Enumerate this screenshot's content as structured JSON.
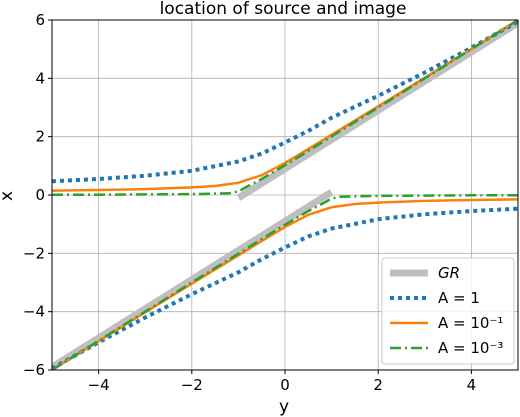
{
  "chart_data": {
    "type": "line",
    "title": "location of source and image",
    "xlabel": "y",
    "ylabel": "x",
    "xlim": [
      -5,
      5
    ],
    "ylim": [
      -6,
      6
    ],
    "xticks": [
      -4,
      -2,
      0,
      2,
      4
    ],
    "yticks": [
      -6,
      -4,
      -2,
      0,
      2,
      4,
      6
    ],
    "xtick_labels": [
      "−4",
      "−2",
      "0",
      "2",
      "4"
    ],
    "ytick_labels": [
      "−6",
      "−4",
      "−2",
      "0",
      "2",
      "4",
      "6"
    ],
    "grid": true,
    "legend_position": "lower-right",
    "series": [
      {
        "name": "GR",
        "label_latex": "GR",
        "color": "#bfbfbf",
        "style": "solid-thick",
        "segments": [
          {
            "x": [
              -1,
              5
            ],
            "y": [
              -0.1,
              5.9
            ]
          },
          {
            "x": [
              -5,
              1
            ],
            "y": [
              -5.9,
              0.1
            ]
          }
        ]
      },
      {
        "name": "A = 1",
        "label_latex": "A = 1",
        "color": "#1f77b4",
        "style": "dotted",
        "branches": [
          {
            "x": [
              -5,
              -4,
              -3,
              -2,
              -1,
              -0.5,
              0,
              0.5,
              1,
              2,
              3,
              4,
              5
            ],
            "y": [
              0.47,
              0.55,
              0.66,
              0.83,
              1.15,
              1.42,
              1.8,
              2.2,
              2.65,
              3.4,
              4.2,
              5.05,
              5.95
            ]
          },
          {
            "x": [
              -5,
              -4,
              -3,
              -2,
              -1,
              -0.5,
              0,
              0.5,
              1,
              2,
              3,
              4,
              5
            ],
            "y": [
              -5.95,
              -5.05,
              -4.2,
              -3.4,
              -2.65,
              -2.2,
              -1.8,
              -1.42,
              -1.15,
              -0.83,
              -0.66,
              -0.55,
              -0.47
            ]
          }
        ]
      },
      {
        "name": "A = 10^-1",
        "label_latex": "A = 10⁻¹",
        "color": "#ff7f0e",
        "style": "solid",
        "branches": [
          {
            "x": [
              -5,
              -4,
              -3,
              -2,
              -1.5,
              -1,
              -0.5,
              0,
              0.5,
              1,
              2,
              3,
              4,
              5
            ],
            "y": [
              0.15,
              0.17,
              0.2,
              0.26,
              0.31,
              0.42,
              0.68,
              1.1,
              1.58,
              2.07,
              3.04,
              4.02,
              5.01,
              6.0
            ]
          },
          {
            "x": [
              -5,
              -4,
              -3,
              -2,
              -1,
              -0.5,
              0,
              0.5,
              1,
              1.5,
              2,
              3,
              4,
              5
            ],
            "y": [
              -6.0,
              -5.01,
              -4.02,
              -3.04,
              -2.07,
              -1.58,
              -1.1,
              -0.68,
              -0.42,
              -0.31,
              -0.26,
              -0.2,
              -0.17,
              -0.15
            ]
          }
        ]
      },
      {
        "name": "A = 10^-3",
        "label_latex": "A = 10⁻³",
        "color": "#2ca02c",
        "style": "dashdot",
        "branches": [
          {
            "x": [
              -5,
              -4,
              -3,
              -2,
              -1.2,
              -1,
              -0.8,
              -0.5,
              0,
              0.5,
              1,
              2,
              3,
              4,
              5
            ],
            "y": [
              0.01,
              0.01,
              0.02,
              0.03,
              0.06,
              0.12,
              0.3,
              0.55,
              1.02,
              1.51,
              2.01,
              3.0,
              4.0,
              5.0,
              6.0
            ]
          },
          {
            "x": [
              -5,
              -4,
              -3,
              -2,
              -1,
              -0.5,
              0,
              0.5,
              0.8,
              1,
              1.2,
              2,
              3,
              4,
              5
            ],
            "y": [
              -6.0,
              -5.0,
              -4.0,
              -3.0,
              -2.01,
              -1.51,
              -1.02,
              -0.55,
              -0.3,
              -0.12,
              -0.06,
              -0.03,
              -0.02,
              -0.01,
              -0.01
            ]
          }
        ]
      }
    ]
  }
}
